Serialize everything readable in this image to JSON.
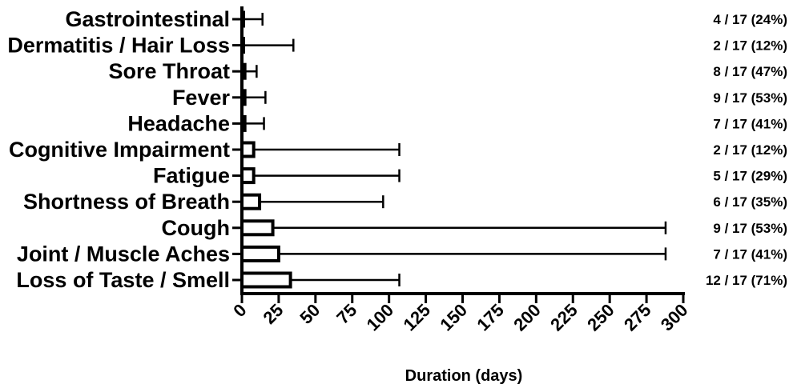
{
  "chart_data": {
    "type": "bar",
    "orientation": "horizontal",
    "xlabel": "Duration (days)",
    "xlim": [
      0,
      300
    ],
    "xticks": [
      "0",
      "25",
      "50",
      "75",
      "100",
      "125",
      "150",
      "175",
      "200",
      "225",
      "250",
      "275",
      "300"
    ],
    "categories": [
      "Gastrointestinal",
      "Dermatitis / Hair Loss",
      "Sore Throat",
      "Fever",
      "Headache",
      "Cognitive Impairment",
      "Fatigue",
      "Shortness of Breath",
      "Cough",
      "Joint / Muscle Aches",
      "Loss of Taste / Smell"
    ],
    "values": [
      1,
      1,
      2,
      2,
      2,
      8,
      8,
      12,
      21,
      25,
      33
    ],
    "error_upper": [
      14,
      35,
      10,
      16,
      15,
      107,
      107,
      96,
      288,
      288,
      107
    ],
    "counts": [
      "4 / 17 (24%)",
      "2 / 17 (12%)",
      "8 / 17 (47%)",
      "9 / 17 (53%)",
      "7 / 17 (41%)",
      "2 / 17 (12%)",
      "5 / 17 (29%)",
      "6 / 17 (35%)",
      "9 / 17 (53%)",
      "7 / 17 (41%)",
      "12 / 17 (71%)"
    ],
    "grid": false,
    "legend": "none"
  }
}
